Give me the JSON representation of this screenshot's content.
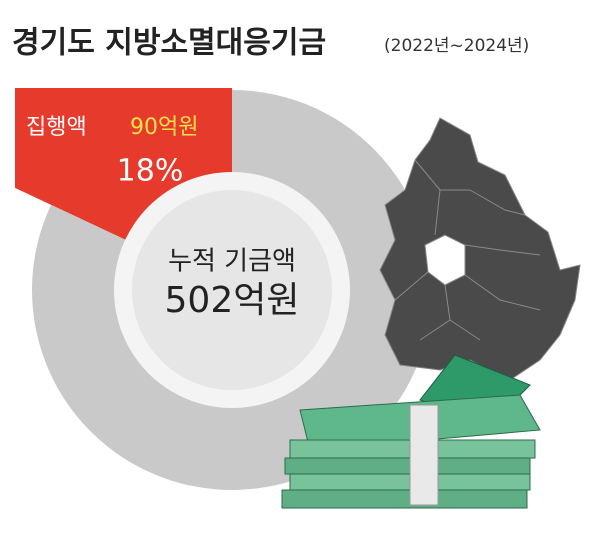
{
  "chart_data": {
    "type": "donut",
    "title": "경기도 지방소멸대응기금",
    "subtitle": "(2022년~2024년)",
    "categories": [
      "집행액",
      null
    ],
    "values": [
      18,
      82
    ],
    "value_labels": [
      "18%",
      null
    ],
    "amount_labels": [
      "90억원",
      null
    ],
    "colors": [
      "#e53a2c",
      "#c9c9c9"
    ],
    "center_title": "누적 기금액",
    "center_label": "502억원"
  }
}
